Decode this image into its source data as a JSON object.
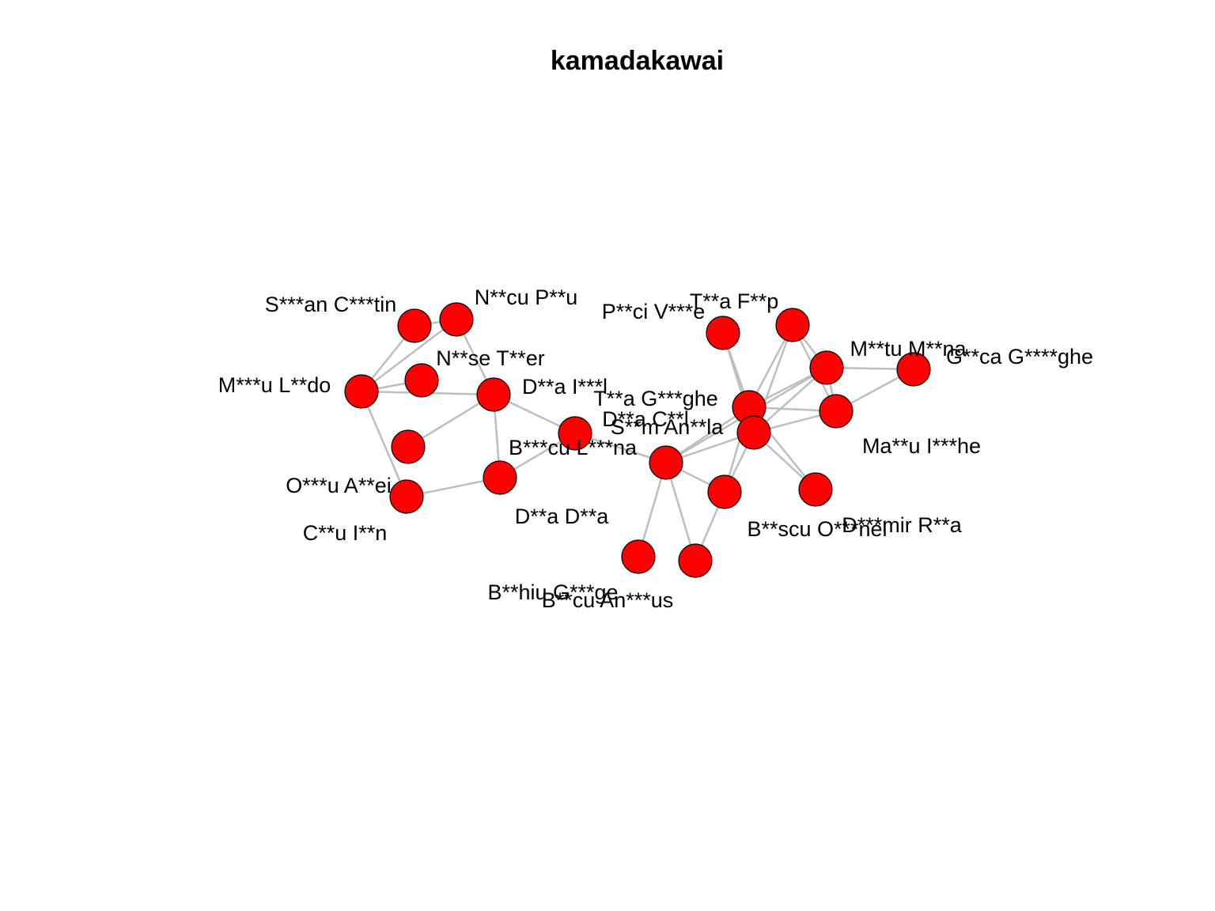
{
  "title": "kamadakawai",
  "colors": {
    "node_fill": "#ff0000",
    "node_stroke": "#000000",
    "edge": "#bebebe",
    "background": "#ffffff"
  },
  "graph": {
    "layout": "kamadakawai",
    "nodes": [
      {
        "id": "n1",
        "label": "S***an C***tin"
      },
      {
        "id": "n2",
        "label": "N**cu P**u"
      },
      {
        "id": "n3",
        "label": "N**se T**er"
      },
      {
        "id": "n4",
        "label": "M***u L**do"
      },
      {
        "id": "n5",
        "label": "D**a I***l"
      },
      {
        "id": "n6",
        "label": "O***u A**ei"
      },
      {
        "id": "n7",
        "label": "C**u I**n"
      },
      {
        "id": "n8",
        "label": "D**a D**a"
      },
      {
        "id": "n9",
        "label": "B***cu L***na"
      },
      {
        "id": "n10",
        "label": "S**m An**la"
      },
      {
        "id": "n11",
        "label": "B**hiu G***ge"
      },
      {
        "id": "n12",
        "label": "B**cu An***us"
      },
      {
        "id": "n13",
        "label": "B**scu O***nel"
      },
      {
        "id": "n14",
        "label": "D***mir R**a"
      },
      {
        "id": "n15",
        "label": "D**a C**l"
      },
      {
        "id": "n16",
        "label": "T**a G***ghe"
      },
      {
        "id": "n17",
        "label": "P**ci V***e"
      },
      {
        "id": "n18",
        "label": "T**a F**p"
      },
      {
        "id": "n19",
        "label": "M**tu M**na"
      },
      {
        "id": "n20",
        "label": "G**ca G****ghe"
      },
      {
        "id": "n21",
        "label": "Ma**u I***he"
      }
    ],
    "edges": [
      [
        "n4",
        "n1"
      ],
      [
        "n4",
        "n2"
      ],
      [
        "n4",
        "n3"
      ],
      [
        "n4",
        "n5"
      ],
      [
        "n4",
        "n7"
      ],
      [
        "n1",
        "n2"
      ],
      [
        "n2",
        "n5"
      ],
      [
        "n6",
        "n5"
      ],
      [
        "n7",
        "n8"
      ],
      [
        "n5",
        "n8"
      ],
      [
        "n5",
        "n9"
      ],
      [
        "n8",
        "n9"
      ],
      [
        "n9",
        "n10"
      ],
      [
        "n10",
        "n11"
      ],
      [
        "n10",
        "n12"
      ],
      [
        "n10",
        "n13"
      ],
      [
        "n10",
        "n15"
      ],
      [
        "n10",
        "n16"
      ],
      [
        "n10",
        "n19"
      ],
      [
        "n12",
        "n13"
      ],
      [
        "n13",
        "n16"
      ],
      [
        "n13",
        "n15"
      ],
      [
        "n15",
        "n14"
      ],
      [
        "n16",
        "n14"
      ],
      [
        "n15",
        "n17"
      ],
      [
        "n16",
        "n17"
      ],
      [
        "n16",
        "n18"
      ],
      [
        "n15",
        "n18"
      ],
      [
        "n16",
        "n19"
      ],
      [
        "n15",
        "n19"
      ],
      [
        "n16",
        "n21"
      ],
      [
        "n15",
        "n21"
      ],
      [
        "n19",
        "n18"
      ],
      [
        "n19",
        "n20"
      ],
      [
        "n19",
        "n21"
      ],
      [
        "n21",
        "n18"
      ],
      [
        "n21",
        "n20"
      ]
    ]
  }
}
